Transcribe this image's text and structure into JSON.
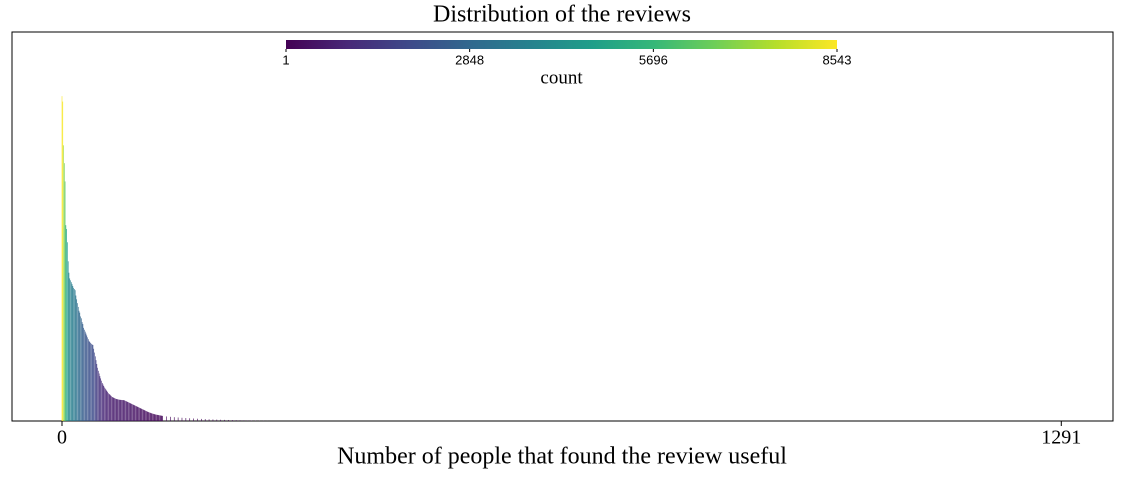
{
  "chart_data": {
    "type": "bar",
    "title": "Distribution of the reviews",
    "xlabel": "Number of people that found the review useful",
    "x": [
      0,
      1,
      2,
      3,
      4,
      5,
      6,
      7,
      8,
      9,
      10,
      11,
      12,
      13,
      14,
      15,
      16,
      17,
      18,
      19,
      20,
      21,
      22,
      23,
      24,
      25,
      26,
      27,
      28,
      29,
      30,
      31,
      32,
      33,
      34,
      35,
      36,
      37,
      38,
      39,
      40,
      41,
      42,
      43,
      44,
      45,
      46,
      47,
      48,
      49,
      50,
      51,
      52,
      53,
      54,
      55,
      56,
      57,
      58,
      59,
      60,
      61,
      62,
      63,
      64,
      65,
      66,
      67,
      68,
      69,
      70,
      71,
      72,
      73,
      74,
      75,
      76,
      77,
      78,
      79,
      80,
      81,
      82,
      83,
      84,
      85,
      86,
      87,
      88,
      89,
      90,
      91,
      92,
      93,
      94,
      95,
      96,
      97,
      98,
      99,
      100,
      101,
      102,
      103,
      104,
      105,
      106,
      107,
      108,
      109,
      110,
      111,
      112,
      113,
      114,
      115,
      116,
      117,
      118,
      119,
      120,
      121,
      122,
      123,
      124,
      125,
      126,
      127,
      128,
      129,
      130,
      135,
      140,
      145,
      150,
      155,
      160,
      165,
      170,
      175,
      180,
      185,
      190,
      195,
      200,
      205,
      210,
      215,
      220,
      225,
      230,
      235,
      240,
      245,
      250,
      255,
      260,
      265
    ],
    "values": [
      8543,
      8400,
      7250,
      6780,
      6300,
      5150,
      5050,
      4700,
      4200,
      3900,
      3750,
      3700,
      3650,
      3600,
      3550,
      3500,
      3470,
      3440,
      3300,
      3200,
      3100,
      3000,
      2900,
      2850,
      2750,
      2700,
      2600,
      2550,
      2450,
      2400,
      2350,
      2300,
      2250,
      2200,
      2150,
      2100,
      2080,
      2050,
      2030,
      2010,
      2000,
      1900,
      1800,
      1700,
      1600,
      1500,
      1400,
      1320,
      1250,
      1180,
      1120,
      1060,
      1000,
      960,
      920,
      880,
      850,
      820,
      790,
      760,
      730,
      710,
      690,
      670,
      650,
      630,
      620,
      610,
      600,
      590,
      580,
      575,
      570,
      565,
      560,
      557,
      555,
      553,
      551,
      550,
      548,
      540,
      530,
      520,
      510,
      500,
      490,
      480,
      470,
      460,
      450,
      440,
      430,
      420,
      410,
      400,
      390,
      380,
      370,
      360,
      350,
      340,
      330,
      320,
      310,
      300,
      290,
      280,
      270,
      260,
      250,
      240,
      232,
      224,
      216,
      208,
      200,
      194,
      188,
      182,
      176,
      170,
      166,
      162,
      158,
      154,
      150,
      146,
      142,
      138,
      134,
      120,
      110,
      100,
      92,
      85,
      78,
      72,
      66,
      60,
      55,
      50,
      45,
      41,
      37,
      33,
      30,
      27,
      24,
      21,
      19,
      17,
      15,
      13,
      11,
      9,
      7,
      5
    ],
    "xlim": [
      -64.6,
      1357.8
    ],
    "xticks": [
      0,
      1291
    ],
    "ylim": [
      0,
      10230
    ],
    "colorbar": {
      "label": "count",
      "colormap": "viridis",
      "lim": [
        1,
        8543
      ],
      "ticks": [
        1,
        2848,
        5696,
        8543
      ]
    }
  }
}
